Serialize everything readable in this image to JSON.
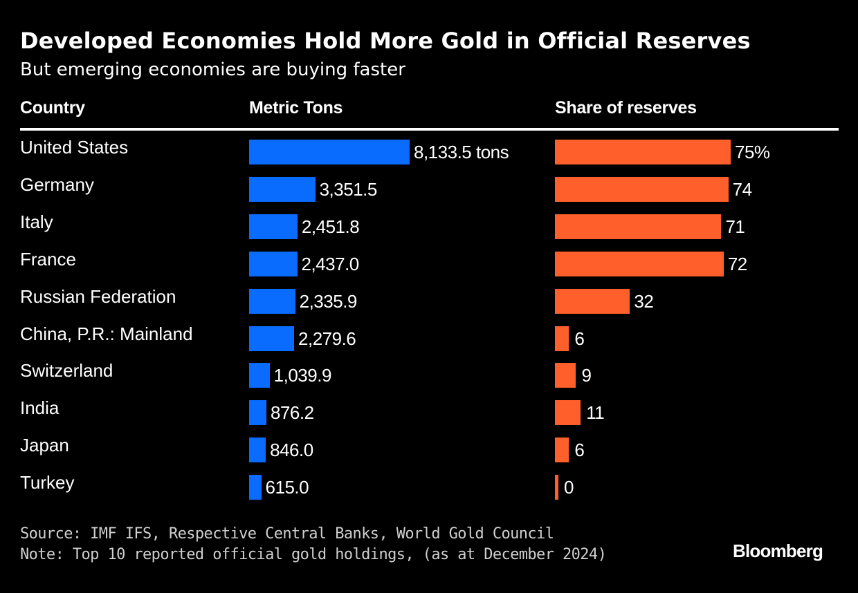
{
  "header": {
    "title": "Developed Economies Hold More Gold in Official Reserves",
    "subtitle": "But emerging economies are buying faster"
  },
  "columns": {
    "country": "Country",
    "tons": "Metric Tons",
    "share": "Share of reserves"
  },
  "colors": {
    "tons_bar": "#0a6cff",
    "share_bar": "#ff5f2a",
    "background": "#000000",
    "text": "#ffffff"
  },
  "chart_data": {
    "type": "table",
    "title": "Developed Economies Hold More Gold in Official Reserves",
    "subtitle": "But emerging economies are buying faster",
    "categories": [
      "United States",
      "Germany",
      "Italy",
      "France",
      "Russian Federation",
      "China, P.R.: Mainland",
      "Switzerland",
      "India",
      "Japan",
      "Turkey"
    ],
    "series": [
      {
        "name": "Metric Tons",
        "type": "bar",
        "unit": "tons",
        "values": [
          8133.5,
          3351.5,
          2451.8,
          2437.0,
          2335.9,
          2279.6,
          1039.9,
          876.2,
          846.0,
          615.0
        ],
        "labels": [
          "8,133.5 tons",
          "3,351.5",
          "2,451.8",
          "2,437.0",
          "2,335.9",
          "2,279.6",
          "1,039.9",
          "876.2",
          "846.0",
          "615.0"
        ]
      },
      {
        "name": "Share of reserves",
        "type": "bar",
        "unit": "%",
        "values": [
          75,
          74,
          71,
          72,
          32,
          6,
          9,
          11,
          6,
          0
        ],
        "labels": [
          "75%",
          "74",
          "71",
          "72",
          "32",
          "6",
          "9",
          "11",
          "6",
          "0"
        ]
      }
    ]
  },
  "footer": {
    "source": "Source: IMF IFS, Respective Central Banks, World Gold Council",
    "note": "Note: Top 10 reported official gold holdings, (as at December 2024)",
    "brand": "Bloomberg"
  }
}
